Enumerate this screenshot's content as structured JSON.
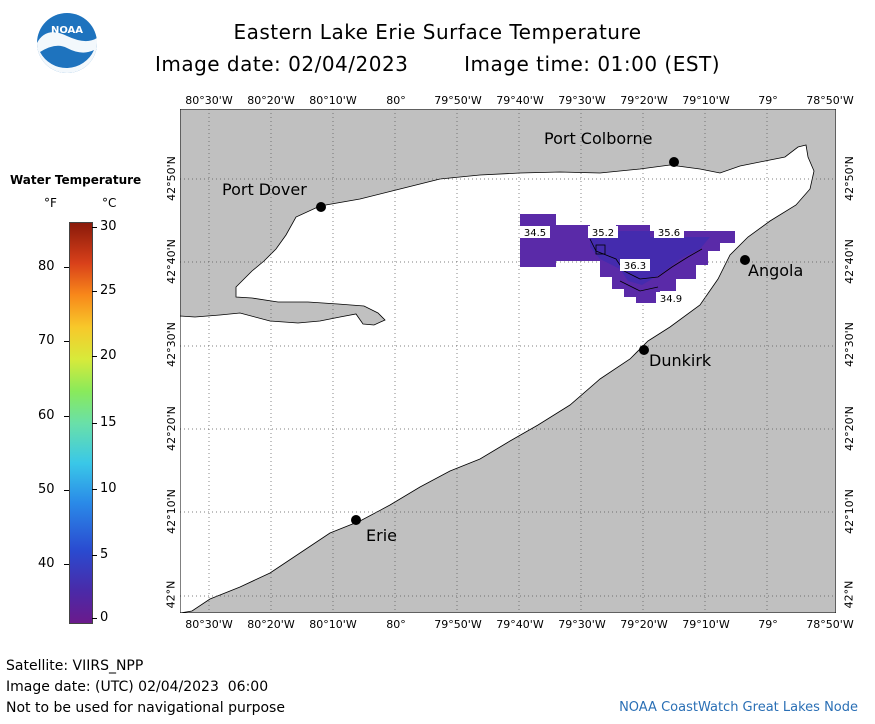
{
  "header": {
    "title": "Eastern Lake Erie Surface Temperature",
    "date_text": "Image date: 02/04/2023",
    "time_text": "Image time: 01:00 (EST)"
  },
  "logo": {
    "text": "NOAA"
  },
  "map": {
    "lon_labels": [
      "80°30'W",
      "80°20'W",
      "80°10'W",
      "80°",
      "79°50'W",
      "79°40'W",
      "79°30'W",
      "79°20'W",
      "79°10'W",
      "79°",
      "78°50'W"
    ],
    "lat_labels": [
      "42°50'N",
      "42°40'N",
      "42°30'N",
      "42°20'N",
      "42°10'N",
      "42°N"
    ],
    "places": [
      {
        "name": "Port Colborne"
      },
      {
        "name": "Port Dover"
      },
      {
        "name": "Angola"
      },
      {
        "name": "Dunkirk"
      },
      {
        "name": "Erie"
      }
    ],
    "contour_labels": [
      "34.5",
      "35.2",
      "35.6",
      "36.3",
      "34.9"
    ],
    "colors": {
      "land": "#c0c0c0",
      "lake": "#ffffff",
      "grid": "#555555",
      "water_temp": "#5a2aa8"
    }
  },
  "legend": {
    "title": "Water Temperature",
    "unit_f": "°F",
    "unit_c": "°C",
    "f_ticks": [
      "80",
      "70",
      "60",
      "50",
      "40"
    ],
    "c_ticks": [
      "30",
      "25",
      "20",
      "15",
      "10",
      "5",
      "0"
    ]
  },
  "footer": {
    "satellite": "Satellite: VIIRS_NPP",
    "utc_date": "Image date: (UTC) 02/04/2023  06:00",
    "disclaimer": "Not to be used for navigational purpose",
    "credit": "NOAA CoastWatch Great Lakes Node"
  }
}
